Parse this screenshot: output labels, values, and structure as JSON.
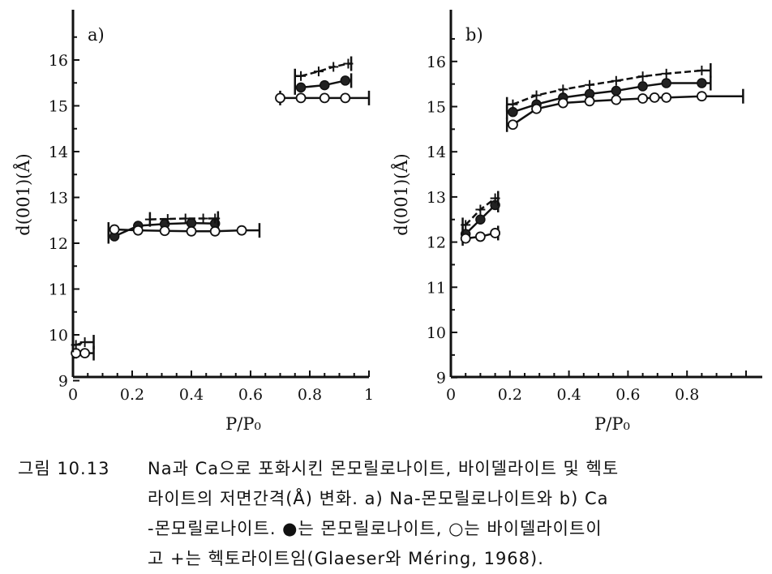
{
  "chart_data": [
    {
      "panel": "a)",
      "type": "line",
      "xlabel": "P/P₀",
      "ylabel": "d(001)(Å)",
      "xlim": [
        0,
        1
      ],
      "ylim": [
        8.9,
        17
      ],
      "xticks": [
        0,
        0.2,
        0.4,
        0.6,
        0.8,
        1
      ],
      "xtick_labels": [
        "0",
        "0.2",
        "0.4",
        "0.6",
        "0.8",
        "1"
      ],
      "yticks": [
        9,
        10,
        11,
        12,
        13,
        14,
        15,
        16
      ],
      "ytick_labels": [
        "9",
        "10",
        "11",
        "12",
        "13",
        "14",
        "15",
        "16"
      ],
      "series": [
        {
          "marker": "filled",
          "segments": [
            {
              "x": [
                0.14,
                0.22,
                0.31,
                0.4,
                0.48
              ],
              "y": [
                12.15,
                12.38,
                12.42,
                12.44,
                12.43
              ],
              "range": [
                0.12,
                0.49
              ]
            },
            {
              "x": [
                0.77,
                0.85,
                0.92
              ],
              "y": [
                15.4,
                15.45,
                15.55
              ],
              "range": [
                0.75,
                0.94
              ]
            }
          ]
        },
        {
          "marker": "open",
          "segments": [
            {
              "x": [
                0.01,
                0.04
              ],
              "y": [
                9.6,
                9.6
              ],
              "range": [
                0,
                0.07
              ]
            },
            {
              "x": [
                0.14,
                0.22,
                0.31,
                0.4,
                0.48,
                0.57
              ],
              "y": [
                12.3,
                12.28,
                12.27,
                12.26,
                12.26,
                12.28
              ],
              "range": [
                0.12,
                0.63
              ]
            },
            {
              "x": [
                0.7,
                0.77,
                0.85,
                0.92
              ],
              "y": [
                15.17,
                15.17,
                15.17,
                15.17
              ],
              "range": [
                0.7,
                1.0
              ]
            }
          ]
        },
        {
          "marker": "plus",
          "segments": [
            {
              "x": [
                0.01,
                0.04
              ],
              "y": [
                9.78,
                9.84
              ],
              "range": [
                0,
                0.07
              ]
            },
            {
              "x": [
                0.26,
                0.32,
                0.38,
                0.44,
                0.48
              ],
              "y": [
                12.52,
                12.53,
                12.54,
                12.54,
                12.54
              ],
              "range": [
                0.26,
                0.49
              ]
            },
            {
              "x": [
                0.77,
                0.83,
                0.88,
                0.93
              ],
              "y": [
                15.65,
                15.75,
                15.85,
                15.92
              ],
              "range": [
                0.75,
                0.94
              ]
            }
          ]
        }
      ]
    },
    {
      "panel": "b)",
      "type": "line",
      "xlabel": "P/P₀",
      "ylabel": "d(001)(Å)",
      "xlim": [
        0,
        1
      ],
      "ylim": [
        8.9,
        17
      ],
      "xticks": [
        0,
        0.2,
        0.4,
        0.6,
        0.8
      ],
      "xtick_labels": [
        "0",
        "0.2",
        "0.4",
        "0.6",
        "0.8"
      ],
      "yticks": [
        9,
        10,
        11,
        12,
        13,
        14,
        15,
        16
      ],
      "ytick_labels": [
        "9",
        "10",
        "11",
        "12",
        "13",
        "14",
        "15",
        "16"
      ],
      "series": [
        {
          "marker": "filled",
          "segments": [
            {
              "x": [
                0.05,
                0.1,
                0.15
              ],
              "y": [
                12.18,
                12.5,
                12.82
              ],
              "range": [
                0.04,
                0.16
              ]
            },
            {
              "x": [
                0.21,
                0.29,
                0.38,
                0.47,
                0.56,
                0.65,
                0.73,
                0.85
              ],
              "y": [
                14.88,
                15.05,
                15.2,
                15.28,
                15.35,
                15.45,
                15.52,
                15.52
              ],
              "range": [
                0.19,
                0.88
              ]
            }
          ]
        },
        {
          "marker": "open",
          "segments": [
            {
              "x": [
                0.05,
                0.1,
                0.15
              ],
              "y": [
                12.08,
                12.12,
                12.2
              ],
              "range": [
                0.04,
                0.16
              ]
            },
            {
              "x": [
                0.21,
                0.29,
                0.38,
                0.47,
                0.56,
                0.65,
                0.69,
                0.73,
                0.85
              ],
              "y": [
                14.6,
                14.95,
                15.08,
                15.12,
                15.15,
                15.18,
                15.2,
                15.2,
                15.23
              ],
              "range": [
                0.19,
                0.99
              ]
            }
          ]
        },
        {
          "marker": "plus",
          "segments": [
            {
              "x": [
                0.05,
                0.1,
                0.15
              ],
              "y": [
                12.38,
                12.72,
                12.97
              ],
              "range": [
                0.04,
                0.16
              ]
            },
            {
              "x": [
                0.21,
                0.29,
                0.38,
                0.47,
                0.56,
                0.65,
                0.73,
                0.85
              ],
              "y": [
                15.05,
                15.25,
                15.38,
                15.48,
                15.57,
                15.67,
                15.73,
                15.8
              ],
              "range": [
                0.19,
                0.88
              ]
            }
          ]
        }
      ]
    }
  ],
  "caption": {
    "label": "그림 10.13",
    "lines": [
      "Na과 Ca으로 포화시킨 몬모릴로나이트, 바이델라이트 및 헥토",
      "라이트의 저면간격(Å) 변화. a) Na-몬모릴로나이트와 b) Ca",
      "-몬모릴로나이트. ●는 몬모릴로나이트, ○는 바이델라이트이",
      "고 +는 헥토라이트임(Glaeser와 Méring, 1968)."
    ]
  }
}
